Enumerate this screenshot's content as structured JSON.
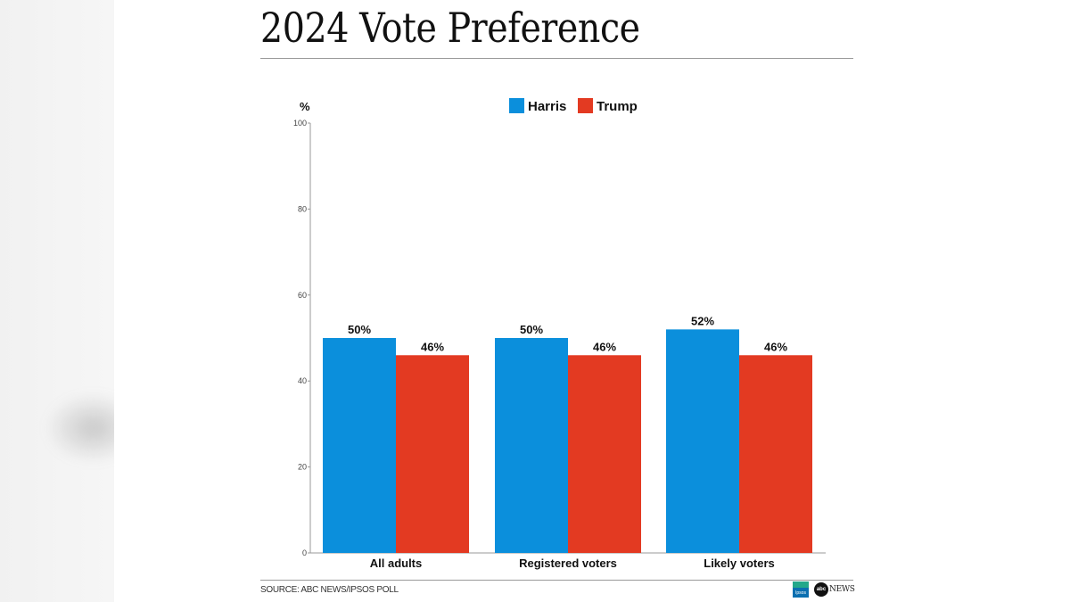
{
  "title": "2024 Vote Preference",
  "source": "SOURCE: ABC NEWS/IPSOS POLL",
  "logos": {
    "ipsos_text": "Ipsos",
    "abc_text": "abc",
    "news_text": "NEWS"
  },
  "chart_data": {
    "type": "bar",
    "title": "2024 Vote Preference",
    "ylabel": "%",
    "xlabel": "",
    "ylim": [
      0,
      100
    ],
    "yticks": [
      0,
      20,
      40,
      60,
      80,
      100
    ],
    "grid": false,
    "legend": "top-center",
    "categories": [
      "All adults",
      "Registered voters",
      "Likely voters"
    ],
    "series": [
      {
        "name": "Harris",
        "color": "#0b8fdc",
        "values": [
          50,
          50,
          52
        ],
        "labels": [
          "50%",
          "50%",
          "52%"
        ]
      },
      {
        "name": "Trump",
        "color": "#e33a22",
        "values": [
          46,
          46,
          46
        ],
        "labels": [
          "46%",
          "46%",
          "46%"
        ]
      }
    ]
  }
}
